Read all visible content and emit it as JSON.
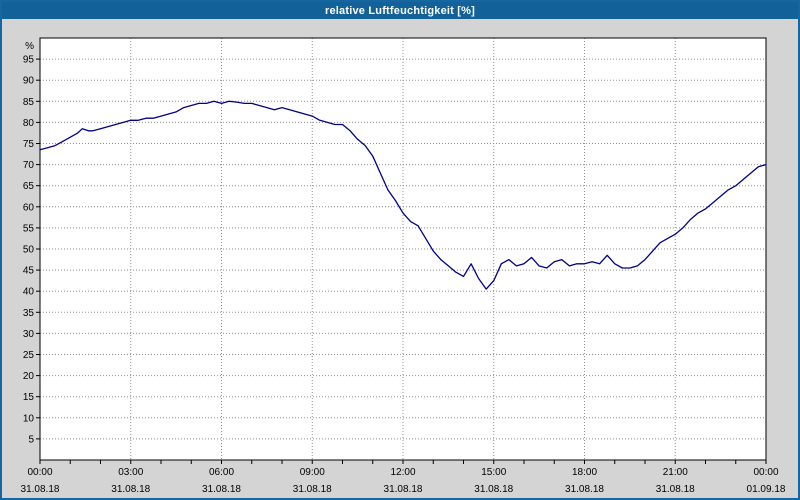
{
  "title": "relative Luftfeuchtigkeit [%]",
  "colors": {
    "titlebar_bg": "#136199",
    "window_border": "#1467a0",
    "page_bg": "#d4d4d4",
    "plot_bg": "#ffffff",
    "plot_border": "#000000",
    "grid": "#909090",
    "line": "#00008b",
    "label_text": "#000000"
  },
  "chart_data": {
    "type": "line",
    "title": "relative Luftfeuchtigkeit [%]",
    "ylabel": "%",
    "xlabel": "",
    "ylim": [
      0,
      100
    ],
    "y_ticks": [
      5,
      10,
      15,
      20,
      25,
      30,
      35,
      40,
      45,
      50,
      55,
      60,
      65,
      70,
      75,
      80,
      85,
      90,
      95
    ],
    "x_range_hours": [
      0,
      24
    ],
    "x_minor_tick_step_hours": 1,
    "grid": true,
    "legend": "none",
    "x_ticks": [
      {
        "hour": 0,
        "time": "00:00",
        "date": "31.08.18"
      },
      {
        "hour": 3,
        "time": "03:00",
        "date": "31.08.18"
      },
      {
        "hour": 6,
        "time": "06:00",
        "date": "31.08.18"
      },
      {
        "hour": 9,
        "time": "09:00",
        "date": "31.08.18"
      },
      {
        "hour": 12,
        "time": "12:00",
        "date": "31.08.18"
      },
      {
        "hour": 15,
        "time": "15:00",
        "date": "31.08.18"
      },
      {
        "hour": 18,
        "time": "18:00",
        "date": "31.08.18"
      },
      {
        "hour": 21,
        "time": "21:00",
        "date": "31.08.18"
      },
      {
        "hour": 24,
        "time": "00:00",
        "date": "01.09.18"
      }
    ],
    "series": [
      {
        "name": "relative Luftfeuchtigkeit",
        "points": [
          [
            0,
            73.5
          ],
          [
            0.25,
            74
          ],
          [
            0.5,
            74.5
          ],
          [
            0.75,
            75.5
          ],
          [
            1,
            76.5
          ],
          [
            1.25,
            77.5
          ],
          [
            1.4,
            78.5
          ],
          [
            1.6,
            78
          ],
          [
            1.75,
            78
          ],
          [
            2,
            78.5
          ],
          [
            2.25,
            79
          ],
          [
            2.5,
            79.5
          ],
          [
            2.75,
            80
          ],
          [
            3,
            80.5
          ],
          [
            3.25,
            80.5
          ],
          [
            3.5,
            81
          ],
          [
            3.75,
            81
          ],
          [
            4,
            81.5
          ],
          [
            4.25,
            82
          ],
          [
            4.5,
            82.5
          ],
          [
            4.75,
            83.5
          ],
          [
            5,
            84
          ],
          [
            5.25,
            84.5
          ],
          [
            5.5,
            84.5
          ],
          [
            5.75,
            85
          ],
          [
            6,
            84.5
          ],
          [
            6.25,
            85
          ],
          [
            6.5,
            84.8
          ],
          [
            6.75,
            84.5
          ],
          [
            7,
            84.5
          ],
          [
            7.25,
            84
          ],
          [
            7.5,
            83.5
          ],
          [
            7.75,
            83
          ],
          [
            8,
            83.5
          ],
          [
            8.25,
            83
          ],
          [
            8.5,
            82.5
          ],
          [
            8.75,
            82
          ],
          [
            9,
            81.5
          ],
          [
            9.25,
            80.5
          ],
          [
            9.5,
            80
          ],
          [
            9.75,
            79.5
          ],
          [
            10,
            79.5
          ],
          [
            10.25,
            78
          ],
          [
            10.5,
            76
          ],
          [
            10.75,
            74.5
          ],
          [
            11,
            72
          ],
          [
            11.25,
            68
          ],
          [
            11.5,
            64
          ],
          [
            11.75,
            61.5
          ],
          [
            12,
            58.5
          ],
          [
            12.25,
            56.5
          ],
          [
            12.5,
            55.5
          ],
          [
            12.75,
            52.5
          ],
          [
            13,
            49.5
          ],
          [
            13.25,
            47.5
          ],
          [
            13.5,
            46
          ],
          [
            13.75,
            44.5
          ],
          [
            14,
            43.5
          ],
          [
            14.25,
            46.5
          ],
          [
            14.5,
            43
          ],
          [
            14.75,
            40.5
          ],
          [
            15,
            42.5
          ],
          [
            15.25,
            46.5
          ],
          [
            15.5,
            47.5
          ],
          [
            15.75,
            46
          ],
          [
            16,
            46.5
          ],
          [
            16.25,
            48
          ],
          [
            16.5,
            46
          ],
          [
            16.75,
            45.5
          ],
          [
            17,
            47
          ],
          [
            17.25,
            47.5
          ],
          [
            17.5,
            46
          ],
          [
            17.75,
            46.5
          ],
          [
            18,
            46.5
          ],
          [
            18.25,
            47
          ],
          [
            18.5,
            46.5
          ],
          [
            18.75,
            48.5
          ],
          [
            19,
            46.5
          ],
          [
            19.25,
            45.5
          ],
          [
            19.5,
            45.5
          ],
          [
            19.75,
            46
          ],
          [
            20,
            47.5
          ],
          [
            20.25,
            49.5
          ],
          [
            20.5,
            51.5
          ],
          [
            20.75,
            52.5
          ],
          [
            21,
            53.5
          ],
          [
            21.25,
            55
          ],
          [
            21.5,
            57
          ],
          [
            21.75,
            58.5
          ],
          [
            22,
            59.5
          ],
          [
            22.25,
            61
          ],
          [
            22.5,
            62.5
          ],
          [
            22.75,
            64
          ],
          [
            23,
            65
          ],
          [
            23.25,
            66.5
          ],
          [
            23.5,
            68
          ],
          [
            23.75,
            69.5
          ],
          [
            24,
            70
          ]
        ]
      }
    ]
  }
}
